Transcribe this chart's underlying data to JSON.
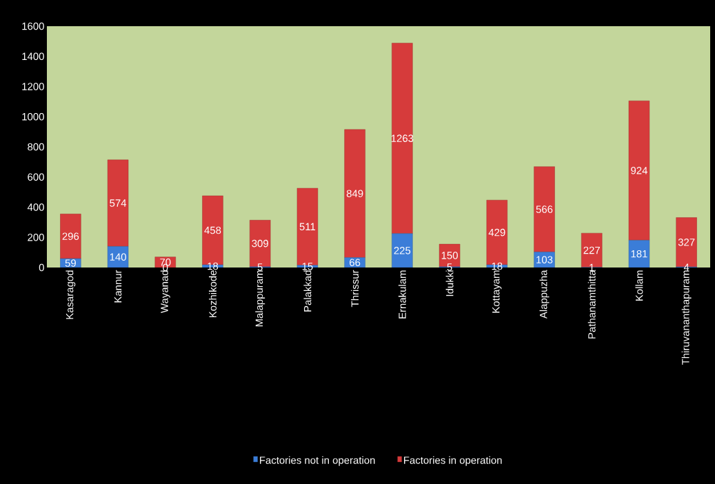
{
  "chart_data": {
    "type": "bar",
    "stacked": true,
    "categories": [
      "Kasaragod",
      "Kannur",
      "Wayanad",
      "Kozhikode",
      "Malappuram",
      "Palakkad",
      "Thrissur",
      "Ernakulam",
      "Idukki",
      "Kottayam",
      "Alappuzha",
      "Pathanamthitta",
      "Kollam",
      "Thiruvananthapuram"
    ],
    "series": [
      {
        "name": "Factories not in operation",
        "color": "#3b7dd8",
        "values": [
          59,
          140,
          0,
          18,
          5,
          15,
          66,
          225,
          5,
          18,
          103,
          1,
          181,
          4
        ]
      },
      {
        "name": "Factories  in operation",
        "color": "#d63b3b",
        "values": [
          296,
          574,
          70,
          458,
          309,
          511,
          849,
          1263,
          150,
          429,
          566,
          227,
          924,
          327
        ]
      }
    ],
    "ylim": [
      0,
      1600
    ],
    "yticks": [
      0,
      200,
      400,
      600,
      800,
      1000,
      1200,
      1400,
      1600
    ],
    "data_labels": true,
    "legend": "bottom"
  }
}
